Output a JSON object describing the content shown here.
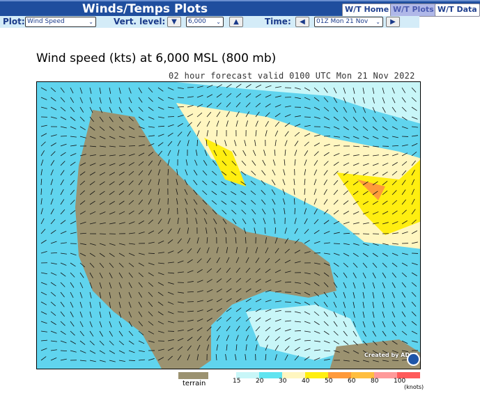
{
  "header": {
    "title": "Winds/Temps Plots",
    "nav": [
      "W/T Home",
      "W/T Plots",
      "W/T Data"
    ],
    "active_nav": "W/T Plots"
  },
  "controls": {
    "plot_label": "Plot:",
    "plot_value": "Wind Speed",
    "level_label": "Vert. level:",
    "level_value": "6,000",
    "time_label": "Time:",
    "time_value": "01Z Mon 21 Nov"
  },
  "map": {
    "title": "Wind speed (kts) at 6,000 MSL (800 mb)",
    "subtitle": "02 hour forecast valid 0100 UTC Mon 21 Nov 2022",
    "credit": "Created by ADDS"
  },
  "legend": {
    "terrain_label": "terrain",
    "terrain_color": "#9b9270",
    "ticks": [
      "15",
      "20",
      "30",
      "40",
      "50",
      "60",
      "80",
      "100"
    ],
    "units": "(knots)",
    "colors": [
      "#c8f6f8",
      "#60e4f0",
      "#fff6c0",
      "#ffee10",
      "#ff9a3a",
      "#ffbe40",
      "#ff9a9a",
      "#ff5a5a"
    ]
  }
}
